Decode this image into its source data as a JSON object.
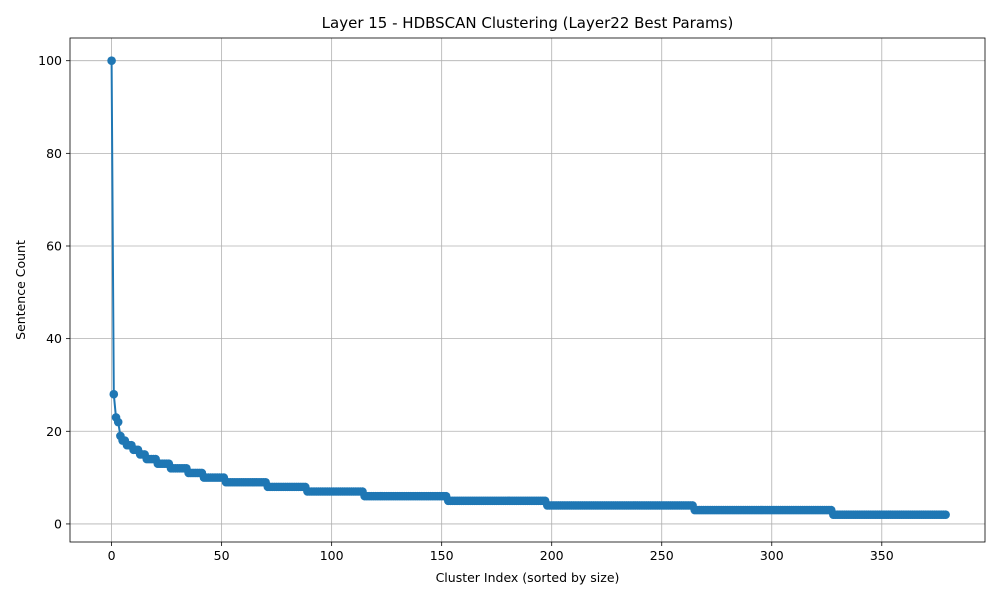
{
  "chart_data": {
    "type": "line",
    "title": "Layer 15 - HDBSCAN Clustering (Layer22 Best Params)",
    "xlabel": "Cluster Index (sorted by size)",
    "ylabel": "Sentence Count",
    "xlim": [
      -18.9,
      396.9
    ],
    "ylim": [
      -3.9,
      104.9
    ],
    "xticks": [
      0,
      50,
      100,
      150,
      200,
      250,
      300,
      350
    ],
    "yticks": [
      0,
      20,
      40,
      60,
      80,
      100
    ],
    "grid": true,
    "legend": "none",
    "marker": "circle",
    "color": "#1f77b4",
    "series_runs": [
      {
        "count": 1,
        "value": 100
      },
      {
        "count": 1,
        "value": 28
      },
      {
        "count": 1,
        "value": 23
      },
      {
        "count": 1,
        "value": 22
      },
      {
        "count": 1,
        "value": 19
      },
      {
        "count": 2,
        "value": 18
      },
      {
        "count": 3,
        "value": 17
      },
      {
        "count": 3,
        "value": 16
      },
      {
        "count": 3,
        "value": 15
      },
      {
        "count": 5,
        "value": 14
      },
      {
        "count": 6,
        "value": 13
      },
      {
        "count": 8,
        "value": 12
      },
      {
        "count": 7,
        "value": 11
      },
      {
        "count": 10,
        "value": 10
      },
      {
        "count": 19,
        "value": 9
      },
      {
        "count": 18,
        "value": 8
      },
      {
        "count": 26,
        "value": 7
      },
      {
        "count": 38,
        "value": 6
      },
      {
        "count": 45,
        "value": 5
      },
      {
        "count": 67,
        "value": 4
      },
      {
        "count": 63,
        "value": 3
      },
      {
        "count": 52,
        "value": 2
      }
    ]
  }
}
